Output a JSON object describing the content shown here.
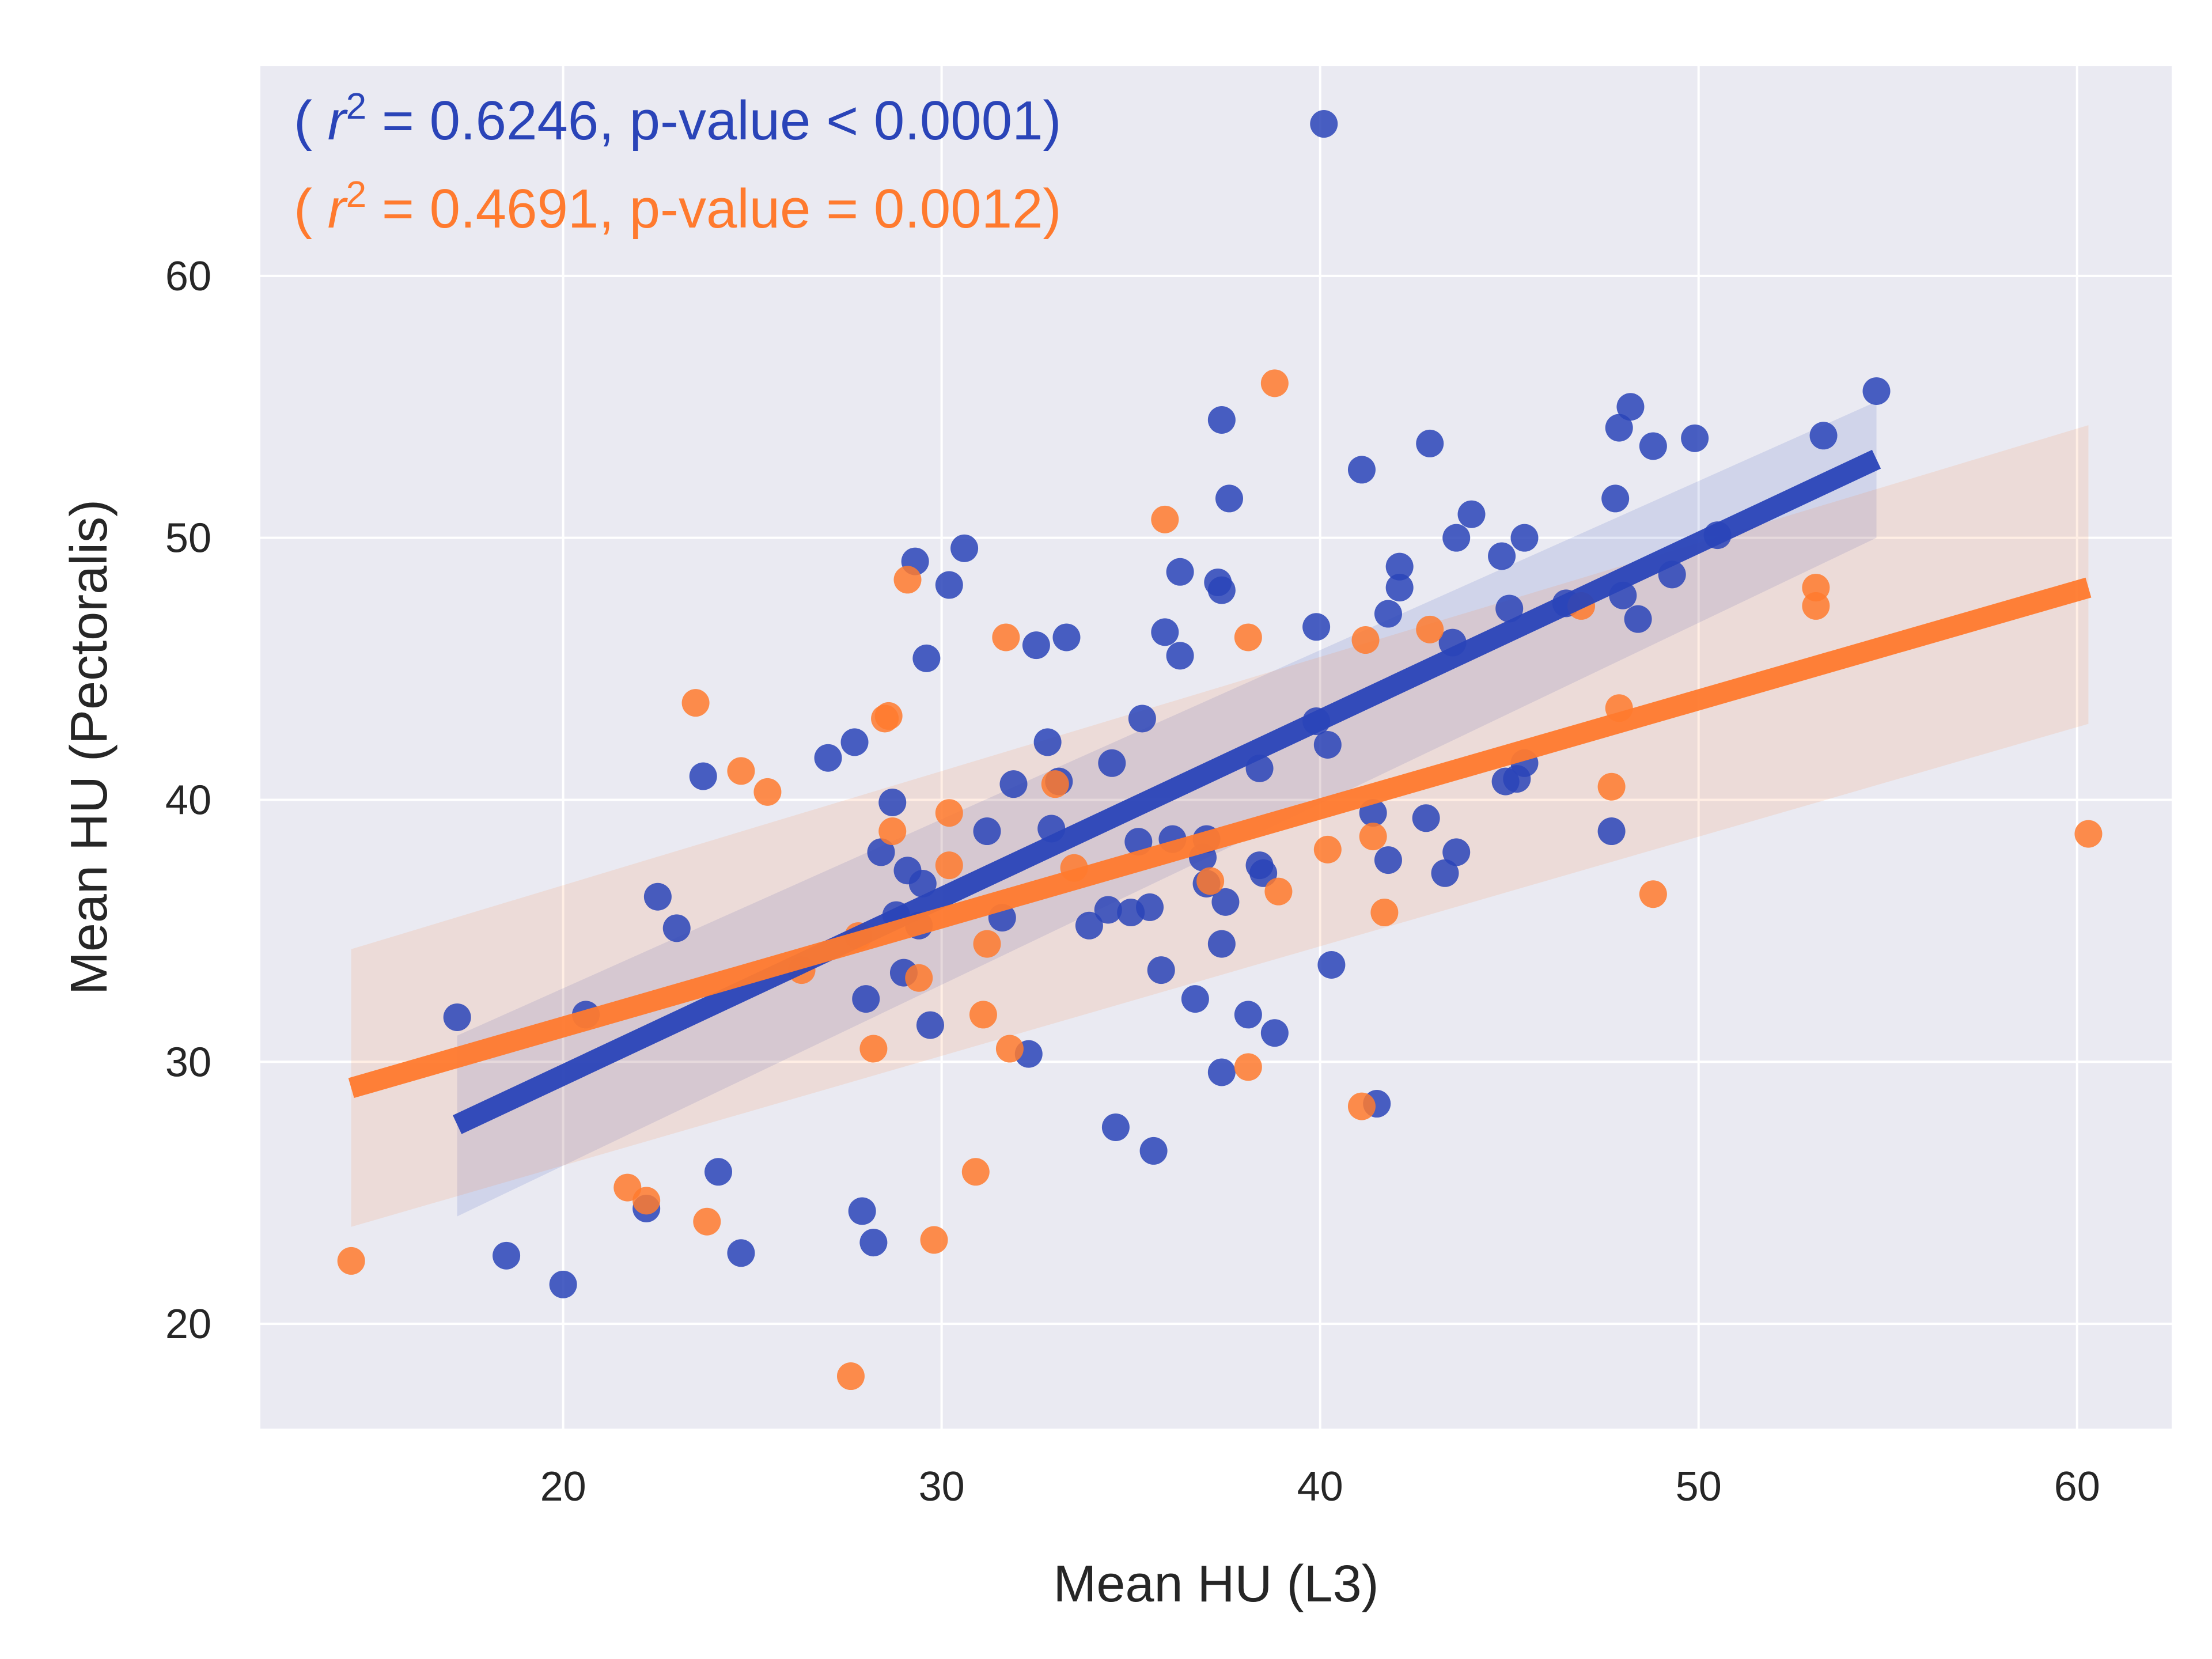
{
  "chart_data": {
    "type": "scatter",
    "title": "",
    "xlabel": "Mean HU (L3)",
    "ylabel": "Mean HU (Pectoralis)",
    "xlim": [
      12,
      62.5
    ],
    "ylim": [
      16,
      68
    ],
    "xticks": [
      20,
      30,
      40,
      50,
      60
    ],
    "yticks": [
      20,
      30,
      40,
      50,
      60
    ],
    "grid": true,
    "background": "#eaeaf2",
    "annotations": [
      {
        "prefix": "( ",
        "var": "r",
        "sup": "2",
        "suffix": " = 0.6246, p-value < 0.0001)",
        "color": "#2a44b8"
      },
      {
        "prefix": "( ",
        "var": "r",
        "sup": "2",
        "suffix": " = 0.4691, p-value = 0.0012)",
        "color": "#ff7a2e"
      }
    ],
    "series": [
      {
        "color": "#2a44b8",
        "fit": {
          "x": [
            17.2,
            54.7
          ],
          "y": [
            27.6,
            53.0
          ]
        },
        "ci": {
          "x": [
            17.2,
            54.7
          ],
          "upper": [
            31.0,
            55.2
          ],
          "lower": [
            24.1,
            50.0
          ]
        },
        "points": [
          [
            17.2,
            31.7
          ],
          [
            18.5,
            22.6
          ],
          [
            20.0,
            21.5
          ],
          [
            20.6,
            31.8
          ],
          [
            22.2,
            24.4
          ],
          [
            22.5,
            36.3
          ],
          [
            23.0,
            35.1
          ],
          [
            23.7,
            40.9
          ],
          [
            24.1,
            25.8
          ],
          [
            24.7,
            22.7
          ],
          [
            27.0,
            41.6
          ],
          [
            27.7,
            42.2
          ],
          [
            27.9,
            24.3
          ],
          [
            28.0,
            32.4
          ],
          [
            28.2,
            23.1
          ],
          [
            28.4,
            38.0
          ],
          [
            28.7,
            39.9
          ],
          [
            28.8,
            35.6
          ],
          [
            29.0,
            33.4
          ],
          [
            29.1,
            37.3
          ],
          [
            29.3,
            49.1
          ],
          [
            29.4,
            35.2
          ],
          [
            29.5,
            36.8
          ],
          [
            29.6,
            45.4
          ],
          [
            29.7,
            31.4
          ],
          [
            30.2,
            48.2
          ],
          [
            30.6,
            49.6
          ],
          [
            31.2,
            38.8
          ],
          [
            31.6,
            35.5
          ],
          [
            31.9,
            40.6
          ],
          [
            32.3,
            30.3
          ],
          [
            32.5,
            45.9
          ],
          [
            32.8,
            42.2
          ],
          [
            32.9,
            38.9
          ],
          [
            33.1,
            40.7
          ],
          [
            33.3,
            46.2
          ],
          [
            33.9,
            35.2
          ],
          [
            34.4,
            35.8
          ],
          [
            34.5,
            41.4
          ],
          [
            34.6,
            27.5
          ],
          [
            35.0,
            35.7
          ],
          [
            35.2,
            38.4
          ],
          [
            35.3,
            43.1
          ],
          [
            35.5,
            35.9
          ],
          [
            35.6,
            26.6
          ],
          [
            35.8,
            33.5
          ],
          [
            35.9,
            46.4
          ],
          [
            36.1,
            38.5
          ],
          [
            36.3,
            45.5
          ],
          [
            36.3,
            48.7
          ],
          [
            36.7,
            32.4
          ],
          [
            36.9,
            37.8
          ],
          [
            37.0,
            38.5
          ],
          [
            37.0,
            36.8
          ],
          [
            37.3,
            48.3
          ],
          [
            37.4,
            54.5
          ],
          [
            37.4,
            48.0
          ],
          [
            37.4,
            29.6
          ],
          [
            37.4,
            34.5
          ],
          [
            37.5,
            36.1
          ],
          [
            37.6,
            51.5
          ],
          [
            38.1,
            31.8
          ],
          [
            38.4,
            41.2
          ],
          [
            38.4,
            37.5
          ],
          [
            38.5,
            37.2
          ],
          [
            38.8,
            31.1
          ],
          [
            39.9,
            46.6
          ],
          [
            39.9,
            43.0
          ],
          [
            40.2,
            42.1
          ],
          [
            40.3,
            33.7
          ],
          [
            41.1,
            52.6
          ],
          [
            41.4,
            39.5
          ],
          [
            41.5,
            28.4
          ],
          [
            41.8,
            47.1
          ],
          [
            41.8,
            37.7
          ],
          [
            42.1,
            48.9
          ],
          [
            42.1,
            48.1
          ],
          [
            42.8,
            39.3
          ],
          [
            42.9,
            53.6
          ],
          [
            43.3,
            37.2
          ],
          [
            43.5,
            46.0
          ],
          [
            43.6,
            50.0
          ],
          [
            43.6,
            38.0
          ],
          [
            44.0,
            50.9
          ],
          [
            44.8,
            49.3
          ],
          [
            44.9,
            40.7
          ],
          [
            45.0,
            47.3
          ],
          [
            45.2,
            40.8
          ],
          [
            45.4,
            41.4
          ],
          [
            45.4,
            50.0
          ],
          [
            46.5,
            47.5
          ],
          [
            47.7,
            38.8
          ],
          [
            47.8,
            51.5
          ],
          [
            47.9,
            54.2
          ],
          [
            48.0,
            47.8
          ],
          [
            48.2,
            55.0
          ],
          [
            48.4,
            46.9
          ],
          [
            48.8,
            53.5
          ],
          [
            49.3,
            48.6
          ],
          [
            49.9,
            53.8
          ],
          [
            50.5,
            50.1
          ],
          [
            53.3,
            53.9
          ],
          [
            54.7,
            55.6
          ],
          [
            40.1,
            65.8
          ]
        ]
      },
      {
        "color": "#ff7a2e",
        "fit": {
          "x": [
            14.4,
            60.3
          ],
          "y": [
            29.0,
            48.1
          ]
        },
        "ci": {
          "x": [
            14.4,
            60.3
          ],
          "upper": [
            34.3,
            54.3
          ],
          "lower": [
            23.7,
            42.9
          ]
        },
        "points": [
          [
            14.4,
            22.4
          ],
          [
            21.7,
            25.2
          ],
          [
            22.2,
            24.7
          ],
          [
            23.5,
            43.7
          ],
          [
            23.8,
            23.9
          ],
          [
            24.7,
            41.1
          ],
          [
            25.4,
            40.3
          ],
          [
            26.3,
            33.5
          ],
          [
            27.6,
            18.0
          ],
          [
            27.8,
            34.8
          ],
          [
            28.2,
            30.5
          ],
          [
            28.5,
            43.1
          ],
          [
            28.6,
            43.2
          ],
          [
            28.7,
            38.8
          ],
          [
            29.1,
            48.4
          ],
          [
            29.4,
            33.2
          ],
          [
            29.8,
            23.2
          ],
          [
            30.2,
            37.5
          ],
          [
            30.2,
            39.5
          ],
          [
            30.9,
            25.8
          ],
          [
            31.1,
            31.8
          ],
          [
            31.2,
            34.5
          ],
          [
            31.7,
            46.2
          ],
          [
            31.8,
            30.5
          ],
          [
            33.0,
            40.6
          ],
          [
            33.5,
            37.4
          ],
          [
            35.9,
            50.7
          ],
          [
            37.1,
            36.9
          ],
          [
            38.1,
            46.2
          ],
          [
            38.1,
            29.8
          ],
          [
            38.8,
            55.9
          ],
          [
            38.9,
            36.5
          ],
          [
            40.2,
            38.1
          ],
          [
            41.1,
            28.3
          ],
          [
            41.2,
            46.1
          ],
          [
            41.4,
            38.6
          ],
          [
            41.7,
            35.7
          ],
          [
            42.9,
            46.5
          ],
          [
            46.9,
            47.4
          ],
          [
            47.7,
            40.5
          ],
          [
            47.9,
            43.5
          ],
          [
            48.8,
            36.4
          ],
          [
            53.1,
            47.4
          ],
          [
            53.1,
            48.1
          ],
          [
            60.3,
            38.7
          ]
        ]
      }
    ]
  }
}
